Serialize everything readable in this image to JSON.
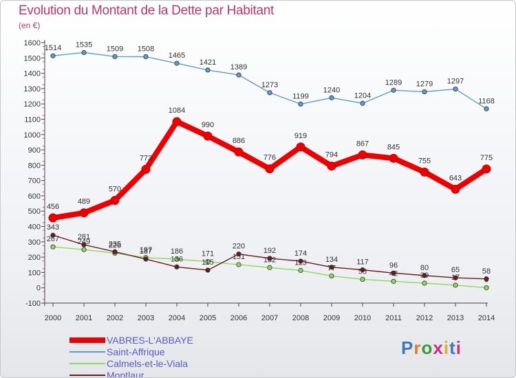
{
  "header": {
    "title": "Evolution du Montant de la Dette par Habitant",
    "subtitle": "(en €)"
  },
  "logo": {
    "text": "Proxiti"
  },
  "chart_data": {
    "type": "line",
    "title": "Evolution du Montant de la Dette par Habitant",
    "ylabel": "(en €)",
    "xlabel": "",
    "ylim": [
      -100,
      1600
    ],
    "yticks": [
      -100,
      0,
      100,
      200,
      300,
      400,
      500,
      600,
      700,
      800,
      900,
      1000,
      1100,
      1200,
      1300,
      1400,
      1500,
      1600
    ],
    "grid": false,
    "legend_position": "bottom-left",
    "categories": [
      "2000",
      "2001",
      "2002",
      "2003",
      "2004",
      "2005",
      "2006",
      "2007",
      "2008",
      "2009",
      "2010",
      "2011",
      "2012",
      "2013",
      "2014"
    ],
    "series": [
      {
        "name": "Saint-Affrique",
        "color": "#5b9bd5",
        "values": [
          1514,
          1535,
          1509,
          1508,
          1465,
          1421,
          1389,
          1273,
          1199,
          1240,
          1204,
          1289,
          1279,
          1297,
          1168
        ]
      },
      {
        "name": "Calmels-et-le-Viala",
        "color": "#8fd85a",
        "values": [
          267,
          249,
          226,
          197,
          186,
          171,
          151,
          132,
          113,
          77,
          55,
          42,
          30,
          17,
          0
        ]
      },
      {
        "name": "Montlaur",
        "color": "#6b1a1a",
        "values": [
          343,
          281,
          235,
          187,
          136,
          115,
          220,
          192,
          174,
          134,
          117,
          96,
          80,
          65,
          58
        ]
      },
      {
        "name": "VABRES-L'ABBAYE",
        "color": "#ee0000",
        "values": [
          456,
          489,
          570,
          773,
          1084,
          990,
          886,
          776,
          919,
          794,
          867,
          845,
          755,
          643,
          775
        ]
      }
    ],
    "legend_order": [
      "VABRES-L'ABBAYE",
      "Saint-Affrique",
      "Calmels-et-le-Viala",
      "Montlaur"
    ]
  }
}
